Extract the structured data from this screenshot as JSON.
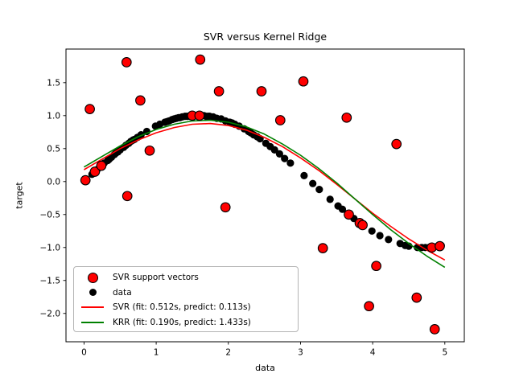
{
  "figure": {
    "title": "SVR versus Kernel Ridge",
    "xlabel": "data",
    "ylabel": "target"
  },
  "colors": {
    "svr_line": "#ff0000",
    "krr_line": "#008000",
    "data_points": "#000000",
    "support_vectors": "#ff0000",
    "support_vector_edge": "#000000",
    "background": "#ffffff",
    "axes_frame": "#000000",
    "legend_border": "#b4b4b4"
  },
  "legend": {
    "position": "lower left",
    "items": [
      {
        "marker": "red-dot",
        "label": "SVR support vectors"
      },
      {
        "marker": "black-dot",
        "label": "data"
      },
      {
        "marker": "red-line",
        "label": "SVR (fit: 0.512s, predict: 0.113s)"
      },
      {
        "marker": "green-line",
        "label": "KRR (fit: 0.190s, predict: 1.433s)"
      }
    ]
  },
  "chart_data": {
    "type": "scatter",
    "title": "SVR versus Kernel Ridge",
    "xlabel": "data",
    "ylabel": "target",
    "xlim": [
      -0.25,
      5.27
    ],
    "ylim": [
      -2.43,
      2.01
    ],
    "grid": false,
    "legend_position": "lower left",
    "xticks": [
      0,
      1,
      2,
      3,
      4,
      5
    ],
    "xtick_labels": [
      "0",
      "1",
      "2",
      "3",
      "4",
      "5"
    ],
    "yticks": [
      -2.0,
      -1.5,
      -1.0,
      -0.5,
      0.0,
      0.5,
      1.0,
      1.5
    ],
    "ytick_labels": [
      "−2.0",
      "−1.5",
      "−1.0",
      "−0.5",
      "0.0",
      "0.5",
      "1.0",
      "1.5"
    ],
    "series": [
      {
        "id": "data",
        "name": "data",
        "type": "scatter",
        "z": 1,
        "color": "#000000",
        "edge": "none",
        "marker_radius": 4.6,
        "points": [
          [
            0.11,
            0.11
          ],
          [
            0.15,
            0.15
          ],
          [
            0.18,
            0.18
          ],
          [
            0.22,
            0.22
          ],
          [
            0.25,
            0.25
          ],
          [
            0.28,
            0.28
          ],
          [
            0.33,
            0.32
          ],
          [
            0.35,
            0.34
          ],
          [
            0.38,
            0.37
          ],
          [
            0.42,
            0.41
          ],
          [
            0.44,
            0.43
          ],
          [
            0.47,
            0.45
          ],
          [
            0.5,
            0.48
          ],
          [
            0.55,
            0.52
          ],
          [
            0.58,
            0.55
          ],
          [
            0.62,
            0.58
          ],
          [
            0.65,
            0.61
          ],
          [
            0.68,
            0.63
          ],
          [
            0.7,
            0.64
          ],
          [
            0.74,
            0.67
          ],
          [
            0.79,
            0.71
          ],
          [
            0.87,
            0.76
          ],
          [
            0.99,
            0.84
          ],
          [
            1.05,
            0.87
          ],
          [
            1.12,
            0.9
          ],
          [
            1.15,
            0.91
          ],
          [
            1.18,
            0.92
          ],
          [
            1.22,
            0.94
          ],
          [
            1.25,
            0.95
          ],
          [
            1.28,
            0.96
          ],
          [
            1.31,
            0.97
          ],
          [
            1.33,
            0.97
          ],
          [
            1.36,
            0.98
          ],
          [
            1.4,
            0.99
          ],
          [
            1.43,
            0.99
          ],
          [
            1.47,
            0.99
          ],
          [
            1.49,
            1.0
          ],
          [
            1.52,
            1.0
          ],
          [
            1.56,
            1.0
          ],
          [
            1.6,
            1.0
          ],
          [
            1.64,
            1.0
          ],
          [
            1.66,
            1.0
          ],
          [
            1.69,
            0.99
          ],
          [
            1.72,
            0.99
          ],
          [
            1.74,
            0.99
          ],
          [
            1.79,
            0.98
          ],
          [
            1.84,
            0.96
          ],
          [
            1.9,
            0.95
          ],
          [
            1.96,
            0.92
          ],
          [
            2.02,
            0.9
          ],
          [
            2.05,
            0.89
          ],
          [
            2.09,
            0.87
          ],
          [
            2.15,
            0.84
          ],
          [
            2.22,
            0.8
          ],
          [
            2.28,
            0.76
          ],
          [
            2.31,
            0.74
          ],
          [
            2.35,
            0.71
          ],
          [
            2.4,
            0.68
          ],
          [
            2.44,
            0.65
          ],
          [
            2.52,
            0.58
          ],
          [
            2.58,
            0.53
          ],
          [
            2.64,
            0.48
          ],
          [
            2.71,
            0.42
          ],
          [
            2.78,
            0.35
          ],
          [
            2.86,
            0.28
          ],
          [
            3.05,
            0.09
          ],
          [
            3.17,
            -0.03
          ],
          [
            3.26,
            -0.12
          ],
          [
            3.41,
            -0.27
          ],
          [
            3.52,
            -0.37
          ],
          [
            3.58,
            -0.42
          ],
          [
            3.74,
            -0.56
          ],
          [
            3.86,
            -0.66
          ],
          [
            3.99,
            -0.75
          ],
          [
            4.1,
            -0.82
          ],
          [
            4.22,
            -0.88
          ],
          [
            4.38,
            -0.94
          ],
          [
            4.45,
            -0.97
          ],
          [
            4.5,
            -0.98
          ],
          [
            4.62,
            -1.0
          ],
          [
            4.68,
            -1.0
          ],
          [
            4.73,
            -1.0
          ],
          [
            4.78,
            -1.0
          ],
          [
            4.84,
            -0.99
          ],
          [
            4.9,
            -0.98
          ],
          [
            4.95,
            -0.97
          ]
        ]
      },
      {
        "id": "svr_curve",
        "name": "SVR (fit: 0.512s, predict: 0.113s)",
        "type": "line",
        "z": 2,
        "color": "#ff0000",
        "width": 1.6,
        "points": [
          [
            0.0,
            0.18
          ],
          [
            0.25,
            0.34
          ],
          [
            0.5,
            0.5
          ],
          [
            0.75,
            0.63
          ],
          [
            1.0,
            0.74
          ],
          [
            1.25,
            0.82
          ],
          [
            1.5,
            0.87
          ],
          [
            1.75,
            0.88
          ],
          [
            2.0,
            0.85
          ],
          [
            2.25,
            0.78
          ],
          [
            2.5,
            0.67
          ],
          [
            2.75,
            0.53
          ],
          [
            3.0,
            0.36
          ],
          [
            3.25,
            0.17
          ],
          [
            3.5,
            -0.04
          ],
          [
            3.75,
            -0.26
          ],
          [
            4.0,
            -0.48
          ],
          [
            4.25,
            -0.68
          ],
          [
            4.5,
            -0.87
          ],
          [
            4.75,
            -1.04
          ],
          [
            5.0,
            -1.19
          ]
        ]
      },
      {
        "id": "krr_curve",
        "name": "KRR (fit: 0.190s, predict: 1.433s)",
        "type": "line",
        "z": 3,
        "color": "#008000",
        "width": 1.6,
        "points": [
          [
            0.0,
            0.22
          ],
          [
            0.25,
            0.38
          ],
          [
            0.5,
            0.54
          ],
          [
            0.75,
            0.68
          ],
          [
            1.0,
            0.79
          ],
          [
            1.25,
            0.87
          ],
          [
            1.5,
            0.92
          ],
          [
            1.75,
            0.93
          ],
          [
            2.0,
            0.9
          ],
          [
            2.25,
            0.83
          ],
          [
            2.5,
            0.72
          ],
          [
            2.75,
            0.57
          ],
          [
            3.0,
            0.4
          ],
          [
            3.25,
            0.2
          ],
          [
            3.5,
            -0.02
          ],
          [
            3.75,
            -0.26
          ],
          [
            4.0,
            -0.5
          ],
          [
            4.25,
            -0.73
          ],
          [
            4.5,
            -0.94
          ],
          [
            4.75,
            -1.13
          ],
          [
            5.0,
            -1.3
          ]
        ]
      },
      {
        "id": "support_vectors",
        "name": "SVR support vectors",
        "type": "scatter",
        "z": 4,
        "color": "#ff0000",
        "edge": "#000000",
        "marker_radius": 5.8,
        "points": [
          [
            0.02,
            0.02
          ],
          [
            0.08,
            1.1
          ],
          [
            0.15,
            0.15
          ],
          [
            0.24,
            0.24
          ],
          [
            0.59,
            1.81
          ],
          [
            0.6,
            -0.22
          ],
          [
            0.78,
            1.23
          ],
          [
            0.91,
            0.47
          ],
          [
            1.5,
            1.0
          ],
          [
            1.6,
            1.0
          ],
          [
            1.61,
            1.85
          ],
          [
            1.87,
            1.37
          ],
          [
            1.96,
            -0.39
          ],
          [
            2.46,
            1.37
          ],
          [
            2.72,
            0.93
          ],
          [
            3.04,
            1.52
          ],
          [
            3.31,
            -1.01
          ],
          [
            3.64,
            0.97
          ],
          [
            3.67,
            -0.5
          ],
          [
            3.82,
            -0.63
          ],
          [
            3.86,
            -0.66
          ],
          [
            3.95,
            -1.89
          ],
          [
            4.05,
            -1.28
          ],
          [
            4.33,
            0.57
          ],
          [
            4.61,
            -1.76
          ],
          [
            4.82,
            -1.0
          ],
          [
            4.86,
            -2.24
          ],
          [
            4.93,
            -0.98
          ]
        ]
      }
    ]
  }
}
